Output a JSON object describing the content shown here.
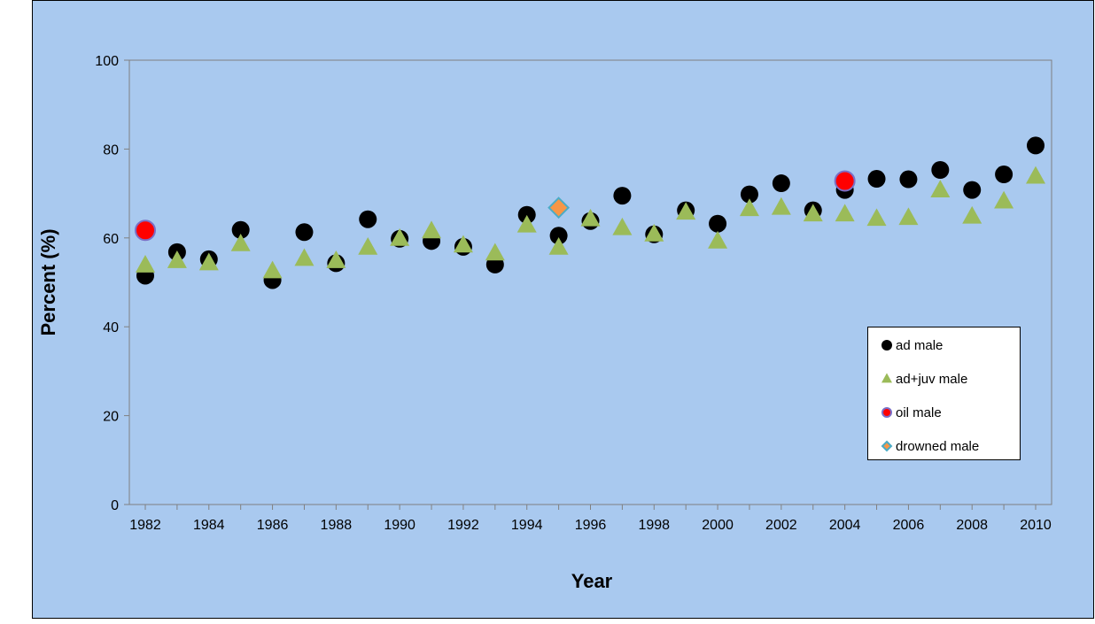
{
  "chart_data": {
    "type": "scatter",
    "title": "",
    "xlabel": "Year",
    "ylabel": "Percent (%)",
    "xlim": [
      1982,
      2010
    ],
    "ylim": [
      0,
      100
    ],
    "x_ticks": [
      1982,
      1984,
      1986,
      1988,
      1990,
      1992,
      1994,
      1996,
      1998,
      2000,
      2002,
      2004,
      2006,
      2008,
      2010
    ],
    "y_ticks": [
      0,
      20,
      40,
      60,
      80,
      100
    ],
    "grid": false,
    "legend_position": "right",
    "background_color": "#a9c9ef",
    "series": [
      {
        "name": "ad male",
        "marker": "circle",
        "color": "#000000",
        "x": [
          1982,
          1983,
          1984,
          1985,
          1986,
          1987,
          1988,
          1989,
          1990,
          1991,
          1992,
          1993,
          1994,
          1995,
          1996,
          1997,
          1998,
          1999,
          2000,
          2001,
          2002,
          2003,
          2004,
          2005,
          2006,
          2007,
          2008,
          2009,
          2010
        ],
        "y": [
          51.5,
          56.8,
          55.2,
          61.8,
          50.5,
          61.3,
          54.3,
          64.2,
          59.8,
          59.3,
          58.0,
          54.0,
          65.2,
          60.5,
          63.8,
          69.5,
          60.8,
          66.2,
          63.2,
          69.8,
          72.3,
          66.2,
          70.8,
          73.3,
          73.2,
          75.3,
          70.8,
          74.3,
          80.8
        ]
      },
      {
        "name": "ad+juv male",
        "marker": "triangle",
        "color": "#9bbb59",
        "x": [
          1982,
          1983,
          1984,
          1985,
          1986,
          1987,
          1988,
          1989,
          1990,
          1991,
          1992,
          1993,
          1994,
          1995,
          1996,
          1997,
          1998,
          1999,
          2000,
          2001,
          2002,
          2003,
          2004,
          2005,
          2006,
          2007,
          2008,
          2009,
          2010
        ],
        "y": [
          53.8,
          54.8,
          54.3,
          58.6,
          52.5,
          55.3,
          54.8,
          57.8,
          59.8,
          61.5,
          58.3,
          56.5,
          62.8,
          57.8,
          64.2,
          62.2,
          60.8,
          65.7,
          59.2,
          66.5,
          66.8,
          65.3,
          65.3,
          64.3,
          64.5,
          70.7,
          64.8,
          68.2,
          73.8
        ]
      },
      {
        "name": "oil male",
        "marker": "circle-outlined",
        "color": "#ff0000",
        "x": [
          1982,
          2004
        ],
        "y": [
          61.7,
          72.8
        ]
      },
      {
        "name": "drowned male",
        "marker": "diamond",
        "color": "#f79646",
        "x": [
          1995
        ],
        "y": [
          66.8
        ]
      }
    ]
  }
}
